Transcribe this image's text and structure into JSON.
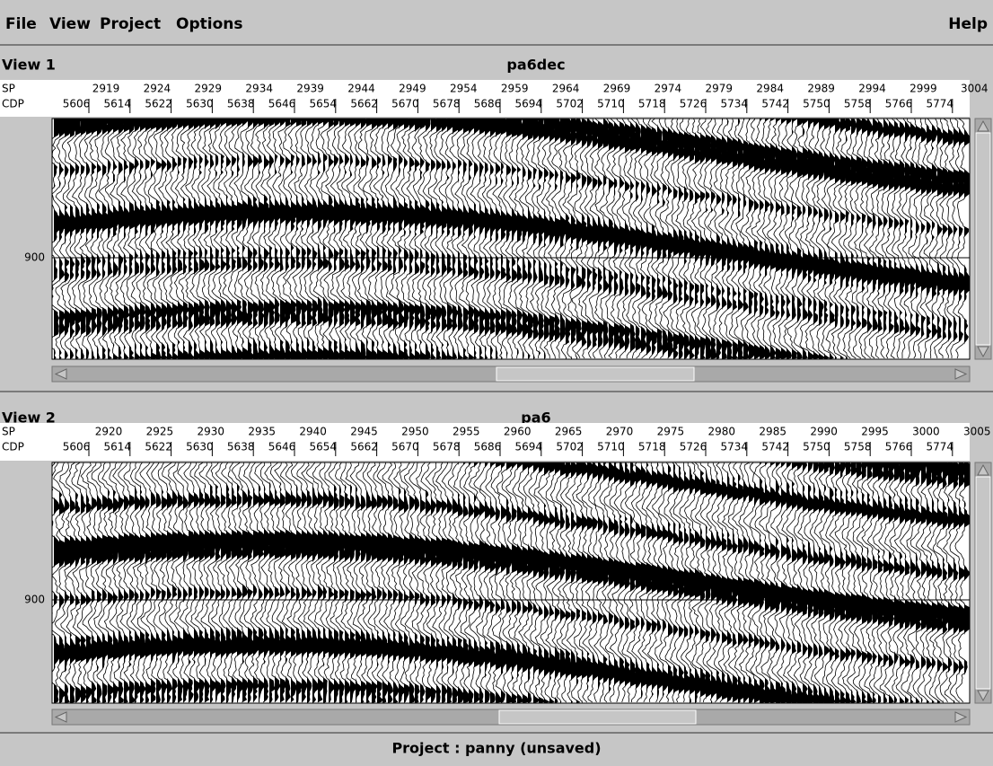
{
  "menu": [
    "File",
    "View",
    "Project",
    "Options"
  ],
  "help": "Help",
  "views": [
    {
      "label": "View 1",
      "title": "pa6dec",
      "sp_label": "SP",
      "sp": [
        2919,
        2924,
        2929,
        2934,
        2939,
        2944,
        2949,
        2954,
        2959,
        2964,
        2969,
        2974,
        2979,
        2984,
        2989,
        2994,
        2999,
        3004
      ],
      "cdp_label": "CDP",
      "cdp": [
        5606,
        5614,
        5622,
        5630,
        5638,
        5646,
        5654,
        5662,
        5670,
        5678,
        5686,
        5694,
        5702,
        5710,
        5718,
        5726,
        5734,
        5742,
        5750,
        5758,
        5766,
        5774
      ],
      "time_label": "900"
    },
    {
      "label": "View 2",
      "title": "pa6",
      "sp_label": "SP",
      "sp": [
        2920,
        2925,
        2930,
        2935,
        2940,
        2945,
        2950,
        2955,
        2960,
        2965,
        2970,
        2975,
        2980,
        2985,
        2990,
        2995,
        3000,
        3005
      ],
      "cdp_label": "CDP",
      "cdp": [
        5606,
        5614,
        5622,
        5630,
        5638,
        5646,
        5654,
        5662,
        5670,
        5678,
        5686,
        5694,
        5702,
        5710,
        5718,
        5726,
        5734,
        5742,
        5750,
        5758,
        5766,
        5774
      ],
      "time_label": "900"
    }
  ],
  "status": "Project : panny (unsaved)"
}
